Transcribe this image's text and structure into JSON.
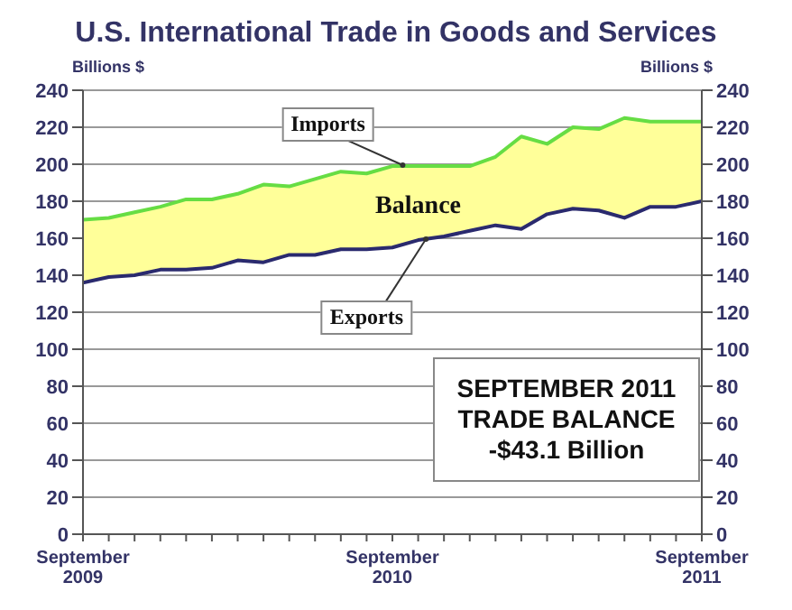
{
  "chart_data": {
    "type": "line",
    "title": "U.S. International Trade in Goods and Services",
    "ylabel": "Billions $",
    "y2label": "Billions $",
    "x": [
      "2009-09",
      "2009-10",
      "2009-11",
      "2009-12",
      "2010-01",
      "2010-02",
      "2010-03",
      "2010-04",
      "2010-05",
      "2010-06",
      "2010-07",
      "2010-08",
      "2010-09",
      "2010-10",
      "2010-11",
      "2010-12",
      "2011-01",
      "2011-02",
      "2011-03",
      "2011-04",
      "2011-05",
      "2011-06",
      "2011-07",
      "2011-08",
      "2011-09"
    ],
    "series": [
      {
        "name": "Imports",
        "color": "#66dd44",
        "colors": [
          "#ffff99",
          "#ffff99",
          "#ffff99",
          "#ffff99",
          "#ffff99",
          "#ffff99",
          "#ffff99",
          "#ffff99",
          "#ffff99",
          "#ffff99",
          "#ffff99",
          "#ffff99",
          "#ffff99",
          "#ffff99",
          "#ffff99",
          "#ffff99",
          "#ffff99",
          "#ffff99",
          "#ffff99",
          "#ffff99",
          "#ffff99",
          "#ffff99",
          "#ffff99",
          "#ffff99",
          "#ffff99"
        ],
        "lower": [
          136,
          139,
          140,
          143,
          143,
          144,
          148,
          147,
          151,
          151,
          154,
          154,
          155,
          159,
          161,
          164,
          167,
          165,
          173,
          176,
          175,
          171,
          177,
          177,
          180
        ],
        "upper": [
          170,
          171,
          174,
          177,
          181,
          181,
          184,
          189,
          188,
          192,
          196,
          195,
          199,
          199,
          199,
          199,
          204,
          215,
          211,
          220,
          219,
          225,
          223,
          223,
          223
        ],
        "values": [
          170,
          171,
          174,
          177,
          181,
          181,
          184,
          189,
          188,
          192,
          196,
          195,
          199,
          199,
          199,
          199,
          204,
          215,
          211,
          220,
          219,
          225,
          223,
          223,
          223
        ]
      },
      {
        "name": "Exports",
        "color": "#2a2a6e",
        "values": [
          136,
          139,
          140,
          143,
          143,
          144,
          148,
          147,
          151,
          151,
          154,
          154,
          155,
          159,
          161,
          164,
          167,
          165,
          173,
          176,
          175,
          171,
          177,
          177,
          180
        ]
      }
    ],
    "xlim": [
      "2009-09",
      "2011-09"
    ],
    "xticks": [
      {
        "value": "2009-09",
        "label": "September 2009"
      },
      {
        "value": "2009-10",
        "label": null
      },
      {
        "value": "2009-11",
        "label": null
      },
      {
        "value": "2009-12",
        "label": null
      },
      {
        "value": "2010-01",
        "label": null
      },
      {
        "value": "2010-02",
        "label": null
      },
      {
        "value": "2010-03",
        "label": null
      },
      {
        "value": "2010-04",
        "label": null
      },
      {
        "value": "2010-05",
        "label": null
      },
      {
        "value": "2010-06",
        "label": null
      },
      {
        "value": "2010-07",
        "label": null
      },
      {
        "value": "2010-08",
        "label": null
      },
      {
        "value": "2010-09",
        "label": "September 2010"
      },
      {
        "value": "2010-10",
        "label": null
      },
      {
        "value": "2010-11",
        "label": null
      },
      {
        "value": "2010-12",
        "label": null
      },
      {
        "value": "2011-01",
        "label": null
      },
      {
        "value": "2011-02",
        "label": null
      },
      {
        "value": "2011-03",
        "label": null
      },
      {
        "value": "2011-04",
        "label": null
      },
      {
        "value": "2011-05",
        "label": null
      },
      {
        "value": "2011-06",
        "label": null
      },
      {
        "value": "2011-07",
        "label": null
      },
      {
        "value": "2011-08",
        "label": null
      },
      {
        "value": "2011-09",
        "label": "September 2011"
      }
    ],
    "ylim": [
      0,
      240
    ],
    "yticks": [
      0,
      20,
      40,
      60,
      80,
      100,
      120,
      140,
      160,
      180,
      200,
      220,
      240
    ],
    "y2lim": [
      0,
      240
    ],
    "y2ticks": [
      0,
      20,
      40,
      60,
      80,
      100,
      120,
      140,
      160,
      180,
      200,
      220,
      240
    ],
    "grid": "y",
    "legend": false,
    "marker": "none",
    "line_style": "solid",
    "annotations": [
      "Balance",
      "SEPTEMBER 2011\nTRADE BALANCE\n-$43.1 Billion"
    ]
  }
}
